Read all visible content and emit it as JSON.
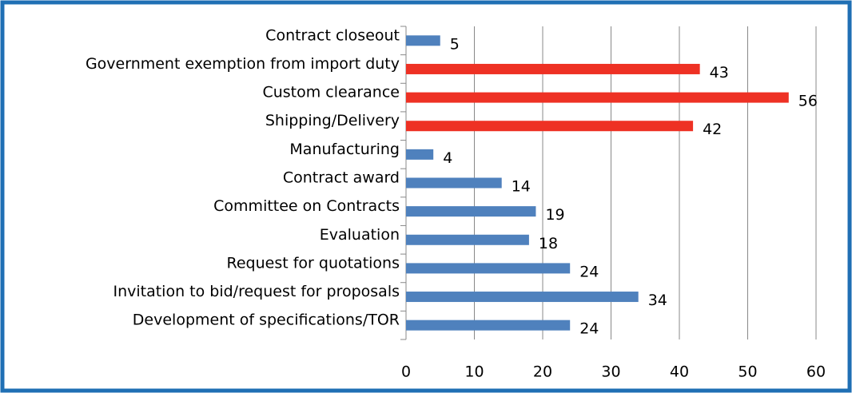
{
  "chart_data": {
    "type": "barh",
    "categories": [
      "Contract closeout",
      "Government exemption from import duty",
      "Custom clearance",
      "Shipping/Delivery",
      "Manufacturing",
      "Contract award",
      "Committee on Contracts",
      "Evaluation",
      "Request for quotations",
      "Invitation to bid/request for proposals",
      "Development of specifications/TOR"
    ],
    "values": [
      5,
      43,
      56,
      42,
      4,
      14,
      19,
      18,
      24,
      34,
      24
    ],
    "colors": [
      "#4f81bd",
      "#ee3124",
      "#ee3124",
      "#ee3124",
      "#4f81bd",
      "#4f81bd",
      "#4f81bd",
      "#4f81bd",
      "#4f81bd",
      "#4f81bd",
      "#4f81bd"
    ],
    "xlim": [
      0,
      60
    ],
    "xticks": [
      0,
      10,
      20,
      30,
      40,
      50,
      60
    ],
    "grid": true
  }
}
